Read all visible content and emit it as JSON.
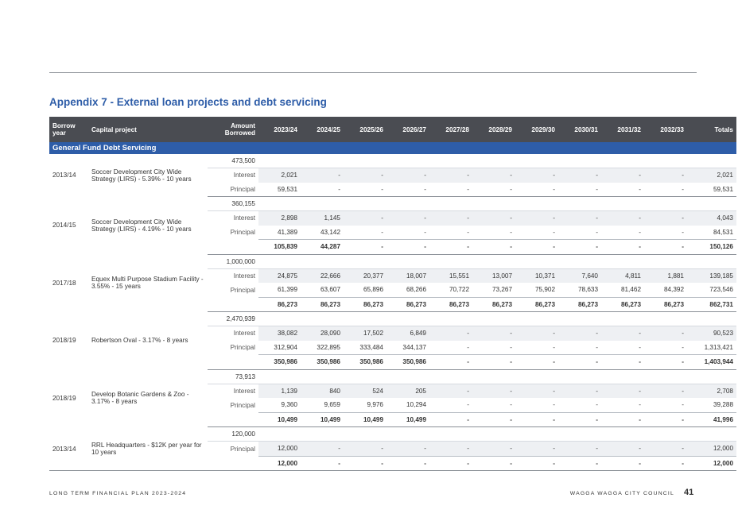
{
  "title": "Appendix 7 - External loan projects and debt servicing",
  "section": "General Fund Debt Servicing",
  "headers": [
    "Borrow year",
    "Capital project",
    "Amount Borrowed",
    "2023/24",
    "2024/25",
    "2025/26",
    "2026/27",
    "2027/28",
    "2028/29",
    "2029/30",
    "2030/31",
    "2031/32",
    "2032/33",
    "Totals"
  ],
  "groups": [
    {
      "year": "2013/14",
      "project": "Soccer Development City Wide Strategy (LIRS) - 5.39% - 10 years",
      "amount": "473,500",
      "rows": [
        {
          "kind": "Interest",
          "values": [
            "2,021",
            "-",
            "-",
            "-",
            "-",
            "-",
            "-",
            "-",
            "-",
            "-",
            "2,021"
          ]
        },
        {
          "kind": "Principal",
          "values": [
            "59,531",
            "-",
            "-",
            "-",
            "-",
            "-",
            "-",
            "-",
            "-",
            "-",
            "59,531"
          ]
        }
      ],
      "total": null
    },
    {
      "year": "2014/15",
      "project": "Soccer Development City Wide Strategy (LIRS) - 4.19% - 10 years",
      "amount": "360,155",
      "rows": [
        {
          "kind": "Interest",
          "values": [
            "2,898",
            "1,145",
            "-",
            "-",
            "-",
            "-",
            "-",
            "-",
            "-",
            "-",
            "4,043"
          ]
        },
        {
          "kind": "Principal",
          "values": [
            "41,389",
            "43,142",
            "-",
            "-",
            "-",
            "-",
            "-",
            "-",
            "-",
            "-",
            "84,531"
          ]
        }
      ],
      "total": [
        "105,839",
        "44,287",
        "-",
        "-",
        "-",
        "-",
        "-",
        "-",
        "-",
        "-",
        "150,126"
      ]
    },
    {
      "year": "2017/18",
      "project": "Equex Multi Purpose Stadium Facility - 3.55% - 15 years",
      "amount": "1,000,000",
      "rows": [
        {
          "kind": "Interest",
          "values": [
            "24,875",
            "22,666",
            "20,377",
            "18,007",
            "15,551",
            "13,007",
            "10,371",
            "7,640",
            "4,811",
            "1,881",
            "139,185"
          ]
        },
        {
          "kind": "Principal",
          "values": [
            "61,399",
            "63,607",
            "65,896",
            "68,266",
            "70,722",
            "73,267",
            "75,902",
            "78,633",
            "81,462",
            "84,392",
            "723,546"
          ]
        }
      ],
      "total": [
        "86,273",
        "86,273",
        "86,273",
        "86,273",
        "86,273",
        "86,273",
        "86,273",
        "86,273",
        "86,273",
        "86,273",
        "862,731"
      ]
    },
    {
      "year": "2018/19",
      "project": "Robertson Oval - 3.17% - 8 years",
      "amount": "2,470,939",
      "rows": [
        {
          "kind": "Interest",
          "values": [
            "38,082",
            "28,090",
            "17,502",
            "6,849",
            "-",
            "-",
            "-",
            "-",
            "-",
            "-",
            "90,523"
          ]
        },
        {
          "kind": "Principal",
          "values": [
            "312,904",
            "322,895",
            "333,484",
            "344,137",
            "-",
            "-",
            "-",
            "-",
            "-",
            "-",
            "1,313,421"
          ]
        }
      ],
      "total": [
        "350,986",
        "350,986",
        "350,986",
        "350,986",
        "-",
        "-",
        "-",
        "-",
        "-",
        "-",
        "1,403,944"
      ]
    },
    {
      "year": "2018/19",
      "project": "Develop Botanic Gardens & Zoo - 3.17% - 8 years",
      "amount": "73,913",
      "rows": [
        {
          "kind": "Interest",
          "values": [
            "1,139",
            "840",
            "524",
            "205",
            "-",
            "-",
            "-",
            "-",
            "-",
            "-",
            "2,708"
          ]
        },
        {
          "kind": "Principal",
          "values": [
            "9,360",
            "9,659",
            "9,976",
            "10,294",
            "-",
            "-",
            "-",
            "-",
            "-",
            "-",
            "39,288"
          ]
        }
      ],
      "total": [
        "10,499",
        "10,499",
        "10,499",
        "10,499",
        "-",
        "-",
        "-",
        "-",
        "-",
        "-",
        "41,996"
      ]
    },
    {
      "year": "2013/14",
      "project": "RRL Headquarters - $12K per year for 10 years",
      "amount": "120,000",
      "rows": [
        {
          "kind": "Principal",
          "values": [
            "12,000",
            "-",
            "-",
            "-",
            "-",
            "-",
            "-",
            "-",
            "-",
            "-",
            "12,000"
          ]
        }
      ],
      "total": [
        "12,000",
        "-",
        "-",
        "-",
        "-",
        "-",
        "-",
        "-",
        "-",
        "-",
        "12,000"
      ]
    }
  ],
  "footer_left": "LONG TERM FINANCIAL PLAN 2023-2024",
  "footer_right": "WAGGA WAGGA CITY COUNCIL",
  "page_number": "41"
}
